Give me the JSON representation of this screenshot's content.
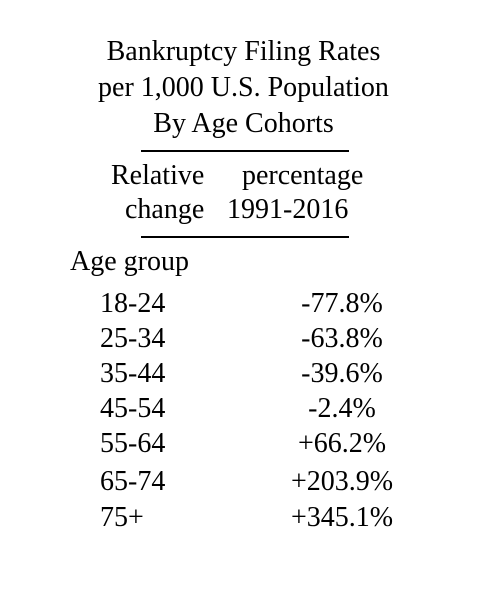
{
  "title": {
    "line1": "Bankruptcy Filing Rates",
    "line2": "per 1,000 U.S. Population",
    "line3": "By Age Cohorts"
  },
  "column_header": {
    "line1_left": "Relative",
    "line1_right": "percentage",
    "line2_left": "change",
    "line2_right": "1991-2016"
  },
  "row_header": "Age group",
  "rows": [
    {
      "age": "18-24",
      "change": "-77.8%"
    },
    {
      "age": "25-34",
      "change": "-63.8%"
    },
    {
      "age": "35-44",
      "change": "-39.6%"
    },
    {
      "age": "45-54",
      "change": "-2.4%"
    },
    {
      "age": "55-64",
      "change": "+66.2%"
    },
    {
      "age": "65-74",
      "change": "+203.9%"
    },
    {
      "age": "75+",
      "change": "+345.1%"
    }
  ]
}
